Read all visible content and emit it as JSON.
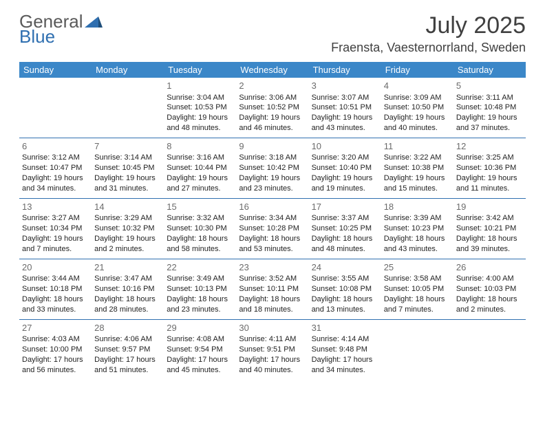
{
  "brand": {
    "word1": "General",
    "word2": "Blue"
  },
  "title": "July 2025",
  "location": "Fraensta, Vaesternorrland, Sweden",
  "colors": {
    "header_bg": "#3b87c8",
    "header_text": "#ffffff",
    "rule": "#2f6fb0",
    "daynum": "#6b6b6b",
    "body_text": "#222222",
    "brand_gray": "#5a5a5a",
    "brand_blue": "#2f6fb0",
    "page_bg": "#ffffff"
  },
  "weekdays": [
    "Sunday",
    "Monday",
    "Tuesday",
    "Wednesday",
    "Thursday",
    "Friday",
    "Saturday"
  ],
  "cells": [
    {
      "n": "",
      "sr": "",
      "ss": "",
      "dl": ""
    },
    {
      "n": "",
      "sr": "",
      "ss": "",
      "dl": ""
    },
    {
      "n": "1",
      "sr": "Sunrise: 3:04 AM",
      "ss": "Sunset: 10:53 PM",
      "dl": "Daylight: 19 hours and 48 minutes."
    },
    {
      "n": "2",
      "sr": "Sunrise: 3:06 AM",
      "ss": "Sunset: 10:52 PM",
      "dl": "Daylight: 19 hours and 46 minutes."
    },
    {
      "n": "3",
      "sr": "Sunrise: 3:07 AM",
      "ss": "Sunset: 10:51 PM",
      "dl": "Daylight: 19 hours and 43 minutes."
    },
    {
      "n": "4",
      "sr": "Sunrise: 3:09 AM",
      "ss": "Sunset: 10:50 PM",
      "dl": "Daylight: 19 hours and 40 minutes."
    },
    {
      "n": "5",
      "sr": "Sunrise: 3:11 AM",
      "ss": "Sunset: 10:48 PM",
      "dl": "Daylight: 19 hours and 37 minutes."
    },
    {
      "n": "6",
      "sr": "Sunrise: 3:12 AM",
      "ss": "Sunset: 10:47 PM",
      "dl": "Daylight: 19 hours and 34 minutes."
    },
    {
      "n": "7",
      "sr": "Sunrise: 3:14 AM",
      "ss": "Sunset: 10:45 PM",
      "dl": "Daylight: 19 hours and 31 minutes."
    },
    {
      "n": "8",
      "sr": "Sunrise: 3:16 AM",
      "ss": "Sunset: 10:44 PM",
      "dl": "Daylight: 19 hours and 27 minutes."
    },
    {
      "n": "9",
      "sr": "Sunrise: 3:18 AM",
      "ss": "Sunset: 10:42 PM",
      "dl": "Daylight: 19 hours and 23 minutes."
    },
    {
      "n": "10",
      "sr": "Sunrise: 3:20 AM",
      "ss": "Sunset: 10:40 PM",
      "dl": "Daylight: 19 hours and 19 minutes."
    },
    {
      "n": "11",
      "sr": "Sunrise: 3:22 AM",
      "ss": "Sunset: 10:38 PM",
      "dl": "Daylight: 19 hours and 15 minutes."
    },
    {
      "n": "12",
      "sr": "Sunrise: 3:25 AM",
      "ss": "Sunset: 10:36 PM",
      "dl": "Daylight: 19 hours and 11 minutes."
    },
    {
      "n": "13",
      "sr": "Sunrise: 3:27 AM",
      "ss": "Sunset: 10:34 PM",
      "dl": "Daylight: 19 hours and 7 minutes."
    },
    {
      "n": "14",
      "sr": "Sunrise: 3:29 AM",
      "ss": "Sunset: 10:32 PM",
      "dl": "Daylight: 19 hours and 2 minutes."
    },
    {
      "n": "15",
      "sr": "Sunrise: 3:32 AM",
      "ss": "Sunset: 10:30 PM",
      "dl": "Daylight: 18 hours and 58 minutes."
    },
    {
      "n": "16",
      "sr": "Sunrise: 3:34 AM",
      "ss": "Sunset: 10:28 PM",
      "dl": "Daylight: 18 hours and 53 minutes."
    },
    {
      "n": "17",
      "sr": "Sunrise: 3:37 AM",
      "ss": "Sunset: 10:25 PM",
      "dl": "Daylight: 18 hours and 48 minutes."
    },
    {
      "n": "18",
      "sr": "Sunrise: 3:39 AM",
      "ss": "Sunset: 10:23 PM",
      "dl": "Daylight: 18 hours and 43 minutes."
    },
    {
      "n": "19",
      "sr": "Sunrise: 3:42 AM",
      "ss": "Sunset: 10:21 PM",
      "dl": "Daylight: 18 hours and 39 minutes."
    },
    {
      "n": "20",
      "sr": "Sunrise: 3:44 AM",
      "ss": "Sunset: 10:18 PM",
      "dl": "Daylight: 18 hours and 33 minutes."
    },
    {
      "n": "21",
      "sr": "Sunrise: 3:47 AM",
      "ss": "Sunset: 10:16 PM",
      "dl": "Daylight: 18 hours and 28 minutes."
    },
    {
      "n": "22",
      "sr": "Sunrise: 3:49 AM",
      "ss": "Sunset: 10:13 PM",
      "dl": "Daylight: 18 hours and 23 minutes."
    },
    {
      "n": "23",
      "sr": "Sunrise: 3:52 AM",
      "ss": "Sunset: 10:11 PM",
      "dl": "Daylight: 18 hours and 18 minutes."
    },
    {
      "n": "24",
      "sr": "Sunrise: 3:55 AM",
      "ss": "Sunset: 10:08 PM",
      "dl": "Daylight: 18 hours and 13 minutes."
    },
    {
      "n": "25",
      "sr": "Sunrise: 3:58 AM",
      "ss": "Sunset: 10:05 PM",
      "dl": "Daylight: 18 hours and 7 minutes."
    },
    {
      "n": "26",
      "sr": "Sunrise: 4:00 AM",
      "ss": "Sunset: 10:03 PM",
      "dl": "Daylight: 18 hours and 2 minutes."
    },
    {
      "n": "27",
      "sr": "Sunrise: 4:03 AM",
      "ss": "Sunset: 10:00 PM",
      "dl": "Daylight: 17 hours and 56 minutes."
    },
    {
      "n": "28",
      "sr": "Sunrise: 4:06 AM",
      "ss": "Sunset: 9:57 PM",
      "dl": "Daylight: 17 hours and 51 minutes."
    },
    {
      "n": "29",
      "sr": "Sunrise: 4:08 AM",
      "ss": "Sunset: 9:54 PM",
      "dl": "Daylight: 17 hours and 45 minutes."
    },
    {
      "n": "30",
      "sr": "Sunrise: 4:11 AM",
      "ss": "Sunset: 9:51 PM",
      "dl": "Daylight: 17 hours and 40 minutes."
    },
    {
      "n": "31",
      "sr": "Sunrise: 4:14 AM",
      "ss": "Sunset: 9:48 PM",
      "dl": "Daylight: 17 hours and 34 minutes."
    },
    {
      "n": "",
      "sr": "",
      "ss": "",
      "dl": ""
    },
    {
      "n": "",
      "sr": "",
      "ss": "",
      "dl": ""
    }
  ]
}
